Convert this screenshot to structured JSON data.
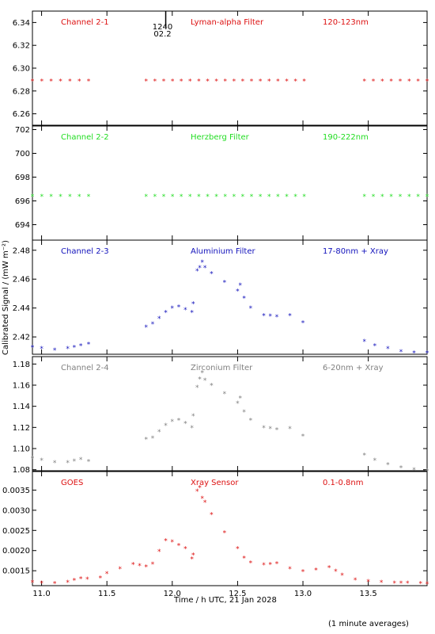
{
  "xlabel": "Time / h UTC, 21 Jan 2028",
  "ylabel": "Calibrated Signal / (mW m⁻²)",
  "footnote": "(1 minute averages)",
  "marker": {
    "time": 11.95,
    "labels": [
      "1240",
      "02.2"
    ]
  },
  "chart_data": [
    {
      "type": "scatter",
      "channel": "Channel 2-1",
      "filter": "Lyman-alpha Filter",
      "band": "120-123nm",
      "color": "#dd1111",
      "xlim": [
        10.93,
        13.95
      ],
      "ylim": [
        6.25,
        6.35
      ],
      "yticks": [
        6.26,
        6.28,
        6.3,
        6.32,
        6.34
      ],
      "ytick_labels": [
        "6.26",
        "6.28",
        "6.30",
        "6.32",
        "6.34"
      ],
      "segments": [
        {
          "x": [
            10.93,
            11.36
          ],
          "y": [
            6.289,
            6.289
          ]
        },
        {
          "x": [
            11.8,
            13.01
          ],
          "y": [
            6.289,
            6.289
          ]
        },
        {
          "x": [
            13.47,
            13.95
          ],
          "y": [
            6.289,
            6.289
          ]
        }
      ]
    },
    {
      "type": "scatter",
      "channel": "Channel 2-2",
      "filter": "Herzberg Filter",
      "band": "190-222nm",
      "color": "#22dd22",
      "xlim": [
        10.93,
        13.95
      ],
      "ylim": [
        692.7,
        702.3
      ],
      "yticks": [
        694,
        696,
        698,
        700,
        702
      ],
      "ytick_labels": [
        "694",
        "696",
        "698",
        "700",
        "702"
      ],
      "segments": [
        {
          "x": [
            10.93,
            11.36
          ],
          "y": [
            696.4,
            696.4
          ]
        },
        {
          "x": [
            11.8,
            13.01
          ],
          "y": [
            696.4,
            696.4
          ]
        },
        {
          "x": [
            13.47,
            13.95
          ],
          "y": [
            696.4,
            696.4
          ]
        }
      ]
    },
    {
      "type": "scatter",
      "channel": "Channel 2-3",
      "filter": "Aluminium Filter",
      "band": "17-80nm + Xray",
      "color": "#1111bb",
      "xlim": [
        10.93,
        13.95
      ],
      "ylim": [
        2.408,
        2.487
      ],
      "yticks": [
        2.42,
        2.44,
        2.46,
        2.48
      ],
      "ytick_labels": [
        "2.42",
        "2.44",
        "2.46",
        "2.48"
      ],
      "segments": [
        {
          "x": [
            10.93,
            11.0,
            11.1,
            11.2,
            11.3,
            11.36
          ],
          "y": [
            2.413,
            2.412,
            2.411,
            2.412,
            2.414,
            2.415
          ]
        },
        {
          "x": [
            11.8,
            11.85,
            11.9,
            11.95,
            12.0,
            12.05,
            12.1,
            12.15
          ],
          "y": [
            2.427,
            2.429,
            2.433,
            2.437,
            2.44,
            2.441,
            2.439,
            2.437
          ]
        },
        {
          "x": [
            12.16
          ],
          "y": [
            2.443
          ]
        },
        {
          "x": [
            12.19,
            12.21,
            12.23,
            12.25,
            12.3,
            12.4,
            12.5,
            12.52,
            12.55,
            12.6,
            12.7,
            12.8,
            12.9,
            13.0
          ],
          "y": [
            2.466,
            2.468,
            2.472,
            2.468,
            2.464,
            2.458,
            2.452,
            2.456,
            2.447,
            2.44,
            2.435,
            2.434,
            2.435,
            2.43
          ]
        },
        {
          "x": [
            13.47,
            13.55,
            13.65,
            13.75,
            13.85,
            13.95
          ],
          "y": [
            2.417,
            2.414,
            2.412,
            2.41,
            2.409,
            2.409
          ]
        }
      ]
    },
    {
      "type": "scatter",
      "channel": "Channel 2-4",
      "filter": "Zirconium Filter",
      "band": "6-20nm + Xray",
      "color": "#808080",
      "xlim": [
        10.93,
        13.95
      ],
      "ylim": [
        1.079,
        1.187
      ],
      "yticks": [
        1.08,
        1.1,
        1.12,
        1.14,
        1.16,
        1.18
      ],
      "ytick_labels": [
        "1.08",
        "1.10",
        "1.12",
        "1.14",
        "1.16",
        "1.18"
      ],
      "segments": [
        {
          "x": [
            10.93,
            11.0,
            11.1,
            11.2,
            11.3,
            11.36
          ],
          "y": [
            1.091,
            1.089,
            1.087,
            1.087,
            1.09,
            1.088
          ]
        },
        {
          "x": [
            11.8,
            11.85,
            11.9,
            11.95,
            12.0,
            12.05,
            12.1,
            12.15
          ],
          "y": [
            1.109,
            1.11,
            1.116,
            1.122,
            1.126,
            1.127,
            1.124,
            1.12
          ]
        },
        {
          "x": [
            12.16
          ],
          "y": [
            1.131
          ]
        },
        {
          "x": [
            12.19,
            12.21,
            12.23,
            12.25,
            12.3,
            12.4,
            12.5,
            12.52,
            12.55,
            12.6,
            12.7,
            12.8,
            12.9,
            13.0
          ],
          "y": [
            1.158,
            1.166,
            1.172,
            1.165,
            1.16,
            1.152,
            1.143,
            1.148,
            1.135,
            1.127,
            1.12,
            1.118,
            1.119,
            1.112
          ]
        },
        {
          "x": [
            13.47,
            13.55,
            13.65,
            13.75,
            13.85,
            13.95
          ],
          "y": [
            1.094,
            1.089,
            1.085,
            1.082,
            1.08,
            1.079
          ]
        }
      ]
    },
    {
      "type": "scatter",
      "channel": "GOES",
      "filter": "Xray Sensor",
      "band": "0.1-0.8nm",
      "color": "#dd1111",
      "xlim": [
        10.93,
        13.95
      ],
      "ylim": [
        0.00113,
        0.00396
      ],
      "yticks": [
        0.0015,
        0.002,
        0.0025,
        0.003,
        0.0035
      ],
      "ytick_labels": [
        "0.0015",
        "0.0020",
        "0.0025",
        "0.0030",
        "0.0035"
      ],
      "segments": [
        {
          "x": [
            10.93,
            11.0,
            11.1,
            11.2,
            11.3,
            11.35,
            11.45,
            11.5,
            11.6,
            11.7,
            11.8,
            11.85,
            11.9,
            11.95,
            12.0,
            12.05,
            12.1,
            12.15
          ],
          "y": [
            0.00122,
            0.0012,
            0.00119,
            0.00122,
            0.00131,
            0.0013,
            0.00133,
            0.00143,
            0.00155,
            0.00166,
            0.0016,
            0.00167,
            0.00198,
            0.00225,
            0.00222,
            0.00213,
            0.00205,
            0.0018
          ]
        },
        {
          "x": [
            12.16
          ],
          "y": [
            0.0019
          ]
        },
        {
          "x": [
            12.19,
            12.21,
            12.23,
            12.25,
            12.3,
            12.4,
            12.5,
            12.55,
            12.6,
            12.7,
            12.8,
            12.9,
            13.0,
            13.1,
            13.2,
            13.3,
            13.4,
            13.5,
            13.6,
            13.7,
            13.8,
            13.9,
            13.95
          ],
          "y": [
            0.00348,
            0.00357,
            0.0033,
            0.0032,
            0.0029,
            0.00245,
            0.00205,
            0.00182,
            0.0017,
            0.00165,
            0.00168,
            0.00155,
            0.00148,
            0.00152,
            0.00158,
            0.0014,
            0.00128,
            0.00124,
            0.00122,
            0.0012,
            0.0012,
            0.00119,
            0.00118
          ]
        }
      ]
    }
  ],
  "xticks": [
    11.0,
    11.5,
    12.0,
    12.5,
    13.0,
    13.5
  ],
  "xtick_labels": [
    "11.0",
    "11.5",
    "12.0",
    "12.5",
    "13.0",
    "13.5"
  ]
}
